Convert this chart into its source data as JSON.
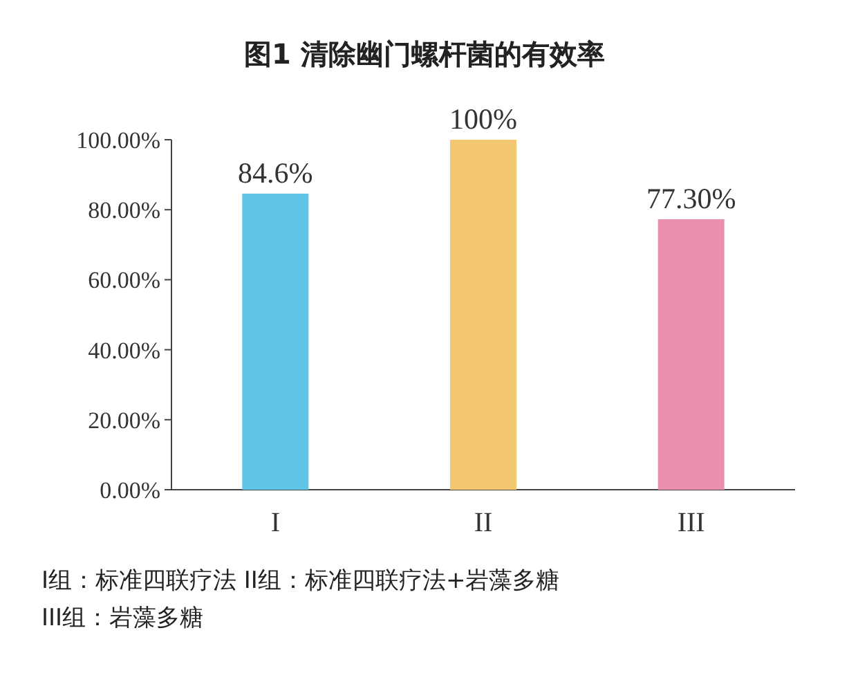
{
  "chart_data": {
    "type": "bar",
    "title": "图1  清除幽门螺杆菌的有效率",
    "categories": [
      "I",
      "II",
      "III"
    ],
    "values": [
      84.6,
      100,
      77.3
    ],
    "colors": [
      "#5ec5e6",
      "#f3c672",
      "#eb8fae"
    ],
    "value_labels": [
      "84.6%",
      "100%",
      "77.30%"
    ],
    "ylim": [
      0,
      100
    ],
    "yticks": [
      {
        "value": 0,
        "label": "0.00%"
      },
      {
        "value": 20,
        "label": "20.00%"
      },
      {
        "value": 40,
        "label": "40.00%"
      },
      {
        "value": 60,
        "label": "60.00%"
      },
      {
        "value": 80,
        "label": "80.00%"
      },
      {
        "value": 100,
        "label": "100.00%"
      }
    ],
    "annotations": [
      "I组：标准四联疗法 II组：标准四联疗法+岩藻多糖",
      "III组：岩藻多糖"
    ]
  }
}
